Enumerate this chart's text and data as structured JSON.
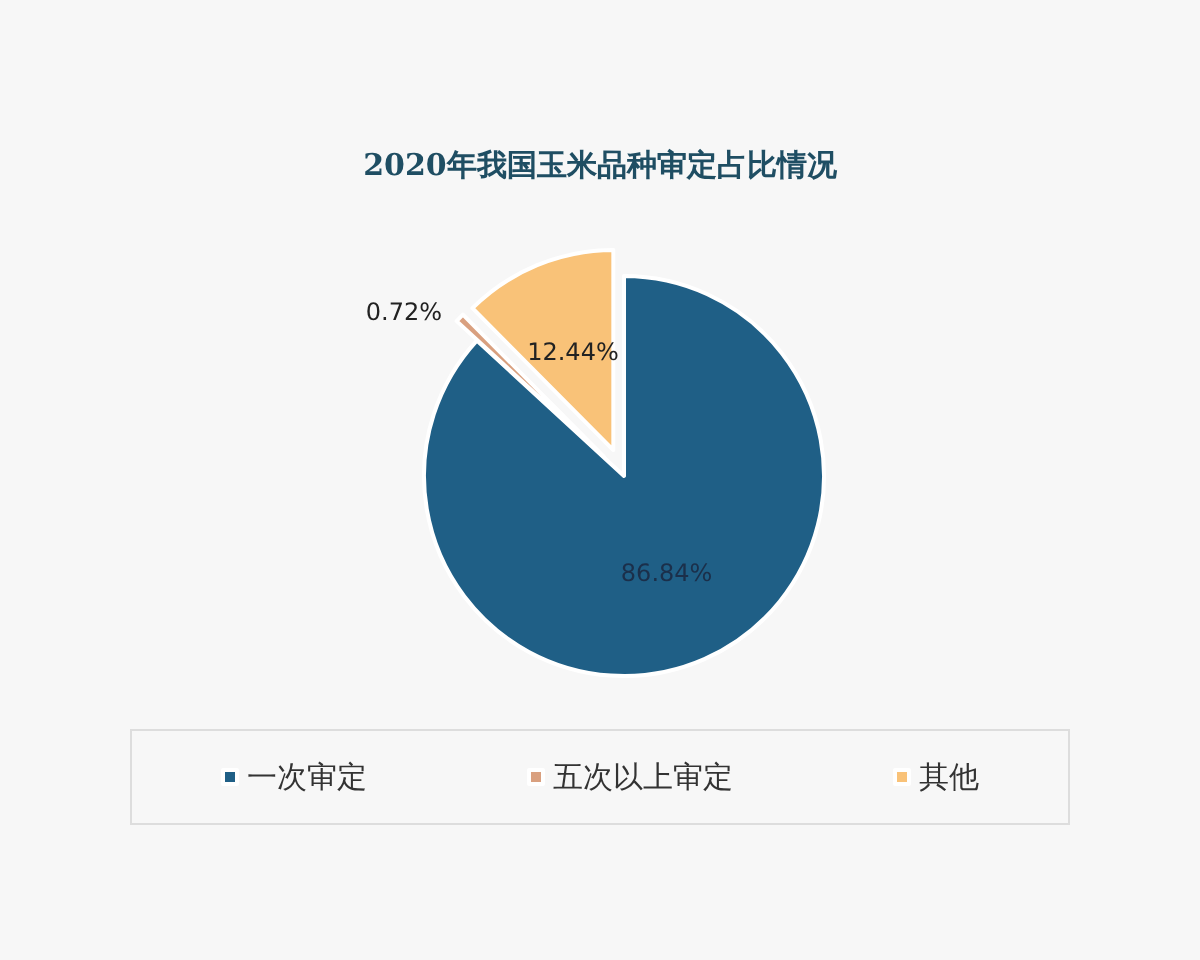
{
  "chart_data": {
    "type": "pie",
    "title": "2020年我国玉米品种审定占比情况",
    "categories": [
      "一次审定",
      "五次以上审定",
      "其他"
    ],
    "values": [
      86.84,
      0.72,
      12.44
    ],
    "colors": [
      "#1f5f86",
      "#d9a07f",
      "#f9c278"
    ],
    "value_labels": [
      "86.84%",
      "0.72%",
      "12.44%"
    ],
    "legend": "bottom"
  }
}
